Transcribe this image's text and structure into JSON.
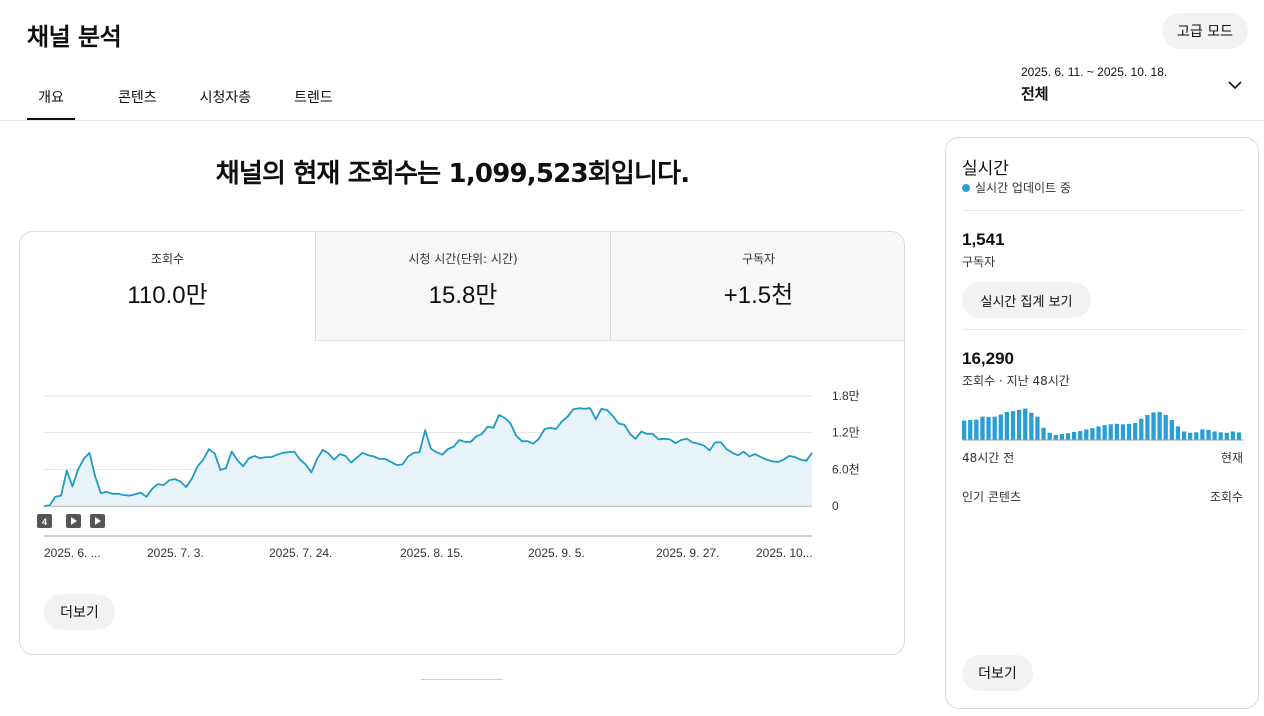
{
  "header": {
    "title": "채널 분석",
    "advanced_mode": "고급 모드"
  },
  "tabs": [
    "개요",
    "콘텐츠",
    "시청자층",
    "트렌드"
  ],
  "date_range": {
    "dates": "2025. 6. 11. ~ 2025. 10. 18.",
    "period": "전체"
  },
  "headline": "채널의 현재 조회수는 1,099,523회입니다.",
  "metrics": [
    {
      "label": "조회수",
      "value": "110.0만"
    },
    {
      "label": "시청 시간(단위: 시간)",
      "value": "15.8만"
    },
    {
      "label": "구독자",
      "value": "+1.5천"
    }
  ],
  "chart_controls": {
    "badge": "4"
  },
  "chart_data": {
    "type": "area",
    "x_tick_labels": [
      "2025. 6. ...",
      "2025. 7. 3.",
      "2025. 7. 24.",
      "2025. 8. 15.",
      "2025. 9. 5.",
      "2025. 9. 27.",
      "2025. 10..."
    ],
    "y_tick_labels": [
      "1.8만",
      "1.2만",
      "6.0천",
      "0"
    ],
    "ylim": [
      0,
      18000
    ],
    "grid": true,
    "values": [
      0,
      100,
      1500,
      1700,
      5800,
      3200,
      6000,
      7700,
      8700,
      4800,
      2100,
      2300,
      2000,
      2000,
      1800,
      1700,
      1900,
      2200,
      1500,
      2800,
      3600,
      3400,
      4200,
      4400,
      4000,
      3100,
      4500,
      6500,
      7600,
      9300,
      8600,
      5900,
      6200,
      8900,
      7500,
      6500,
      7800,
      8200,
      7800,
      8000,
      8000,
      8400,
      8700,
      8800,
      8900,
      7600,
      6800,
      5500,
      7700,
      9200,
      8600,
      7600,
      8500,
      8200,
      7100,
      7900,
      8700,
      8300,
      8100,
      7700,
      7700,
      7200,
      6700,
      6800,
      8100,
      8700,
      8800,
      12400,
      9400,
      8800,
      8400,
      9300,
      9700,
      10800,
      10500,
      10500,
      11400,
      11800,
      13000,
      12800,
      14900,
      14400,
      13500,
      11500,
      10600,
      10600,
      10200,
      11000,
      12600,
      12800,
      12600,
      13800,
      14600,
      15800,
      16000,
      15900,
      16000,
      14200,
      15900,
      15700,
      14700,
      13500,
      13300,
      11800,
      11000,
      12200,
      11800,
      11800,
      10900,
      11000,
      10900,
      10300,
      10800,
      11000,
      10400,
      10200,
      9900,
      9100,
      10400,
      10400,
      9300,
      8700,
      8300,
      8900,
      8100,
      8500,
      8000,
      7600,
      7300,
      7200,
      7600,
      8200,
      8000,
      7600,
      7400,
      8700
    ]
  },
  "more_label": "더보기",
  "realtime": {
    "title": "실시간",
    "status": "실시간 업데이트 중",
    "subscribers": "1,541",
    "subscribers_label": "구독자",
    "view_button": "실시간 집계 보기",
    "views": "16,290",
    "views_label": "조회수 · 지난 48시간",
    "hourly_views": [
      46,
      47,
      48,
      55,
      54,
      55,
      60,
      66,
      68,
      71,
      74,
      64,
      55,
      29,
      17,
      12,
      14,
      16,
      19,
      21,
      25,
      28,
      32,
      35,
      37,
      38,
      37,
      38,
      40,
      50,
      59,
      65,
      66,
      59,
      47,
      32,
      20,
      17,
      18,
      25,
      24,
      20,
      18,
      17,
      20,
      18
    ],
    "axis_left": "48시간 전",
    "axis_right": "현재",
    "top_content": "인기 콘텐츠",
    "top_content_metric": "조회수",
    "more_label": "더보기",
    "accent": "#2a9fd6"
  }
}
